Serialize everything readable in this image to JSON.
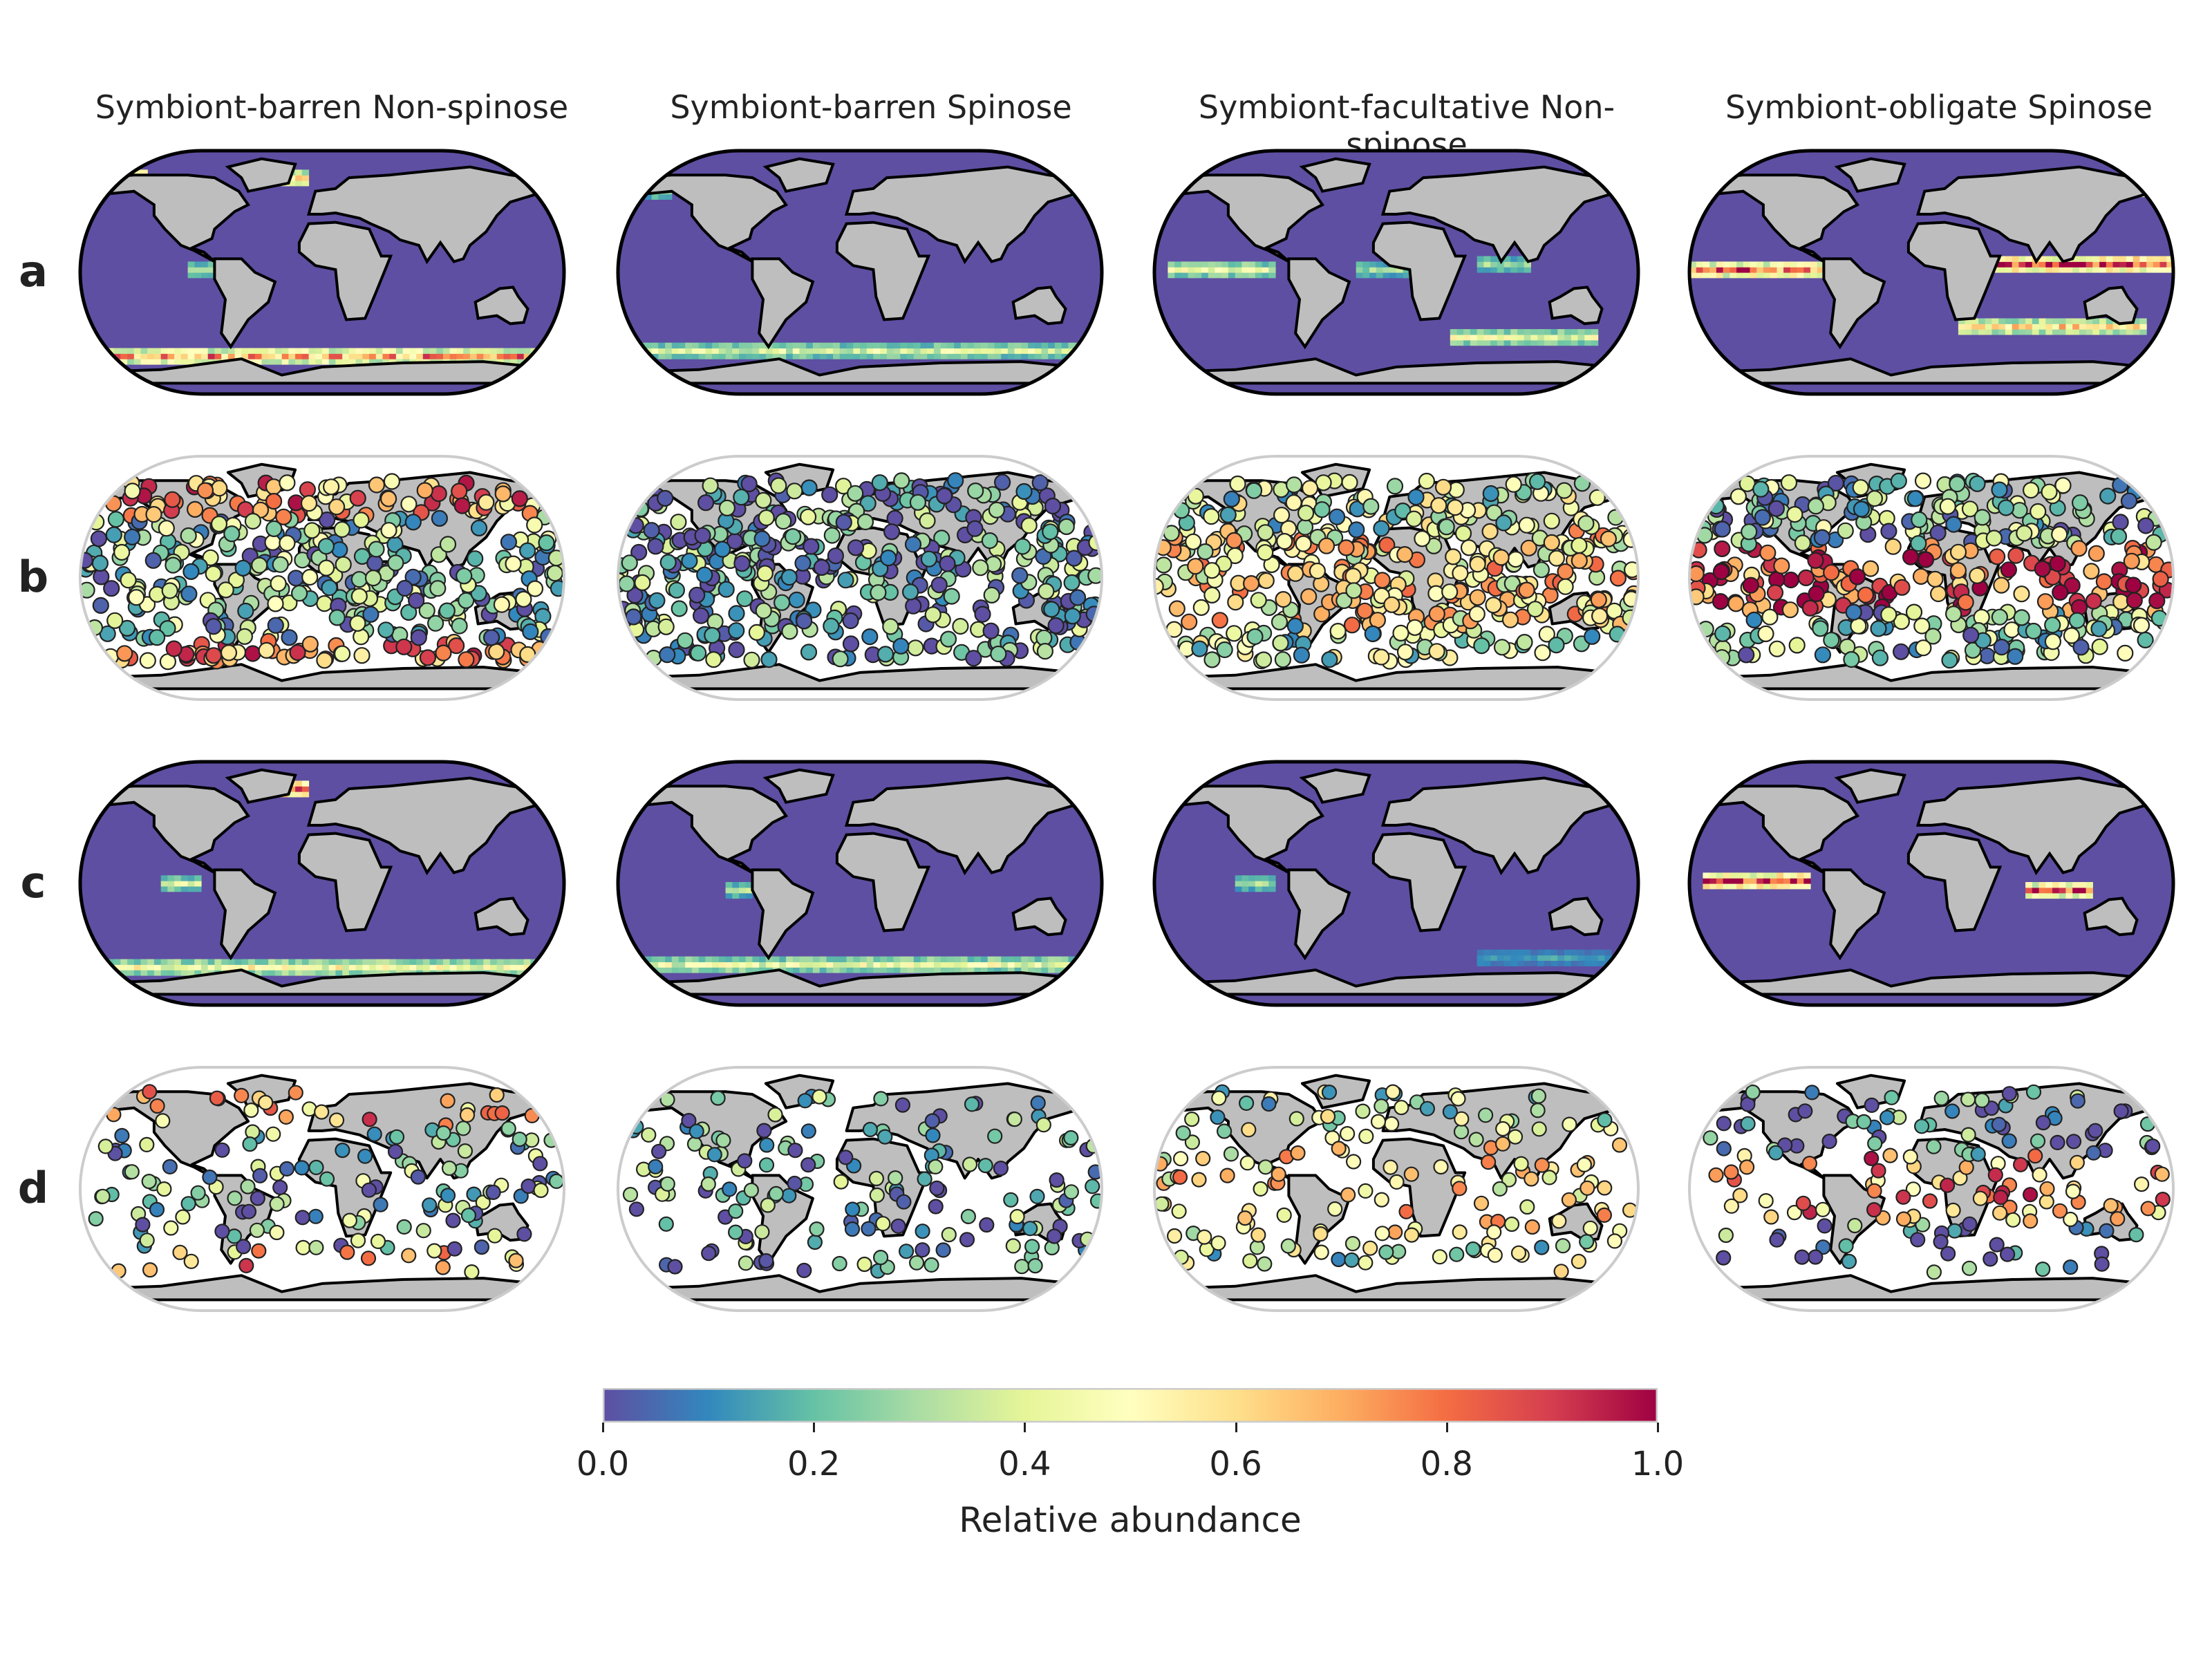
{
  "columns": [
    "Symbiont-barren Non-spinose",
    "Symbiont-barren Spinose",
    "Symbiont-facultative Non-spinose",
    "Symbiont-obligate Spinose"
  ],
  "rows": [
    "a",
    "b",
    "c",
    "d"
  ],
  "colorbar": {
    "label": "Relative abundance",
    "ticks": [
      "0.0",
      "0.2",
      "0.4",
      "0.6",
      "0.8",
      "1.0"
    ],
    "range": [
      0,
      1
    ],
    "colormap": "Spectral_r",
    "stops": [
      "#5e4fa2",
      "#3288bd",
      "#66c2a5",
      "#abdda4",
      "#e6f598",
      "#ffffbf",
      "#fee08b",
      "#fdae61",
      "#f46d43",
      "#d53e4f",
      "#9e0142"
    ]
  },
  "colors": {
    "ocean_zero": "#5e4fa2",
    "land": "#bebebe",
    "coastline": "#000000",
    "frame": "#cccccc"
  },
  "chart_data": {
    "type": "heatmap",
    "projection": "Eckert IV",
    "value_range": [
      0,
      1
    ],
    "rows": [
      {
        "label": "a",
        "kind": "gridded-model",
        "bands": [
          [
            {
              "lat": -62,
              "lon": [
                -180,
                180
              ],
              "v": 0.75
            },
            {
              "lat": 70,
              "lon": [
                -170,
                -130
              ],
              "v": 0.85
            },
            {
              "lat": 70,
              "lon": [
                -40,
                -10
              ],
              "v": 0.7
            },
            {
              "lat": 72,
              "lon": [
                140,
                180
              ],
              "v": 0.6
            },
            {
              "lat": 2,
              "lon": [
                -100,
                -80
              ],
              "v": 0.35
            }
          ],
          [
            {
              "lat": -58,
              "lon": [
                -180,
                180
              ],
              "v": 0.4
            },
            {
              "lat": 60,
              "lon": [
                -160,
                -140
              ],
              "v": 0.3
            },
            {
              "lat": 62,
              "lon": [
                150,
                180
              ],
              "v": 0.35
            }
          ],
          [
            {
              "lat": 2,
              "lon": [
                -170,
                -90
              ],
              "v": 0.45
            },
            {
              "lat": -48,
              "lon": [
                40,
                150
              ],
              "v": 0.45
            },
            {
              "lat": 2,
              "lon": [
                -30,
                10
              ],
              "v": 0.3
            },
            {
              "lat": 6,
              "lon": [
                60,
                100
              ],
              "v": 0.3
            }
          ],
          [
            {
              "lat": 2,
              "lon": [
                -180,
                -80
              ],
              "v": 0.85
            },
            {
              "lat": 6,
              "lon": [
                40,
                180
              ],
              "v": 0.95
            },
            {
              "lat": -40,
              "lon": [
                20,
                160
              ],
              "v": 0.6
            },
            {
              "lat": 62,
              "lon": [
                140,
                180
              ],
              "v": 0.8
            }
          ]
        ]
      },
      {
        "label": "b",
        "kind": "core-top-observations",
        "mean_by_column": [
          0.35,
          0.15,
          0.45,
          0.55
        ]
      },
      {
        "label": "c",
        "kind": "gridded-model",
        "bands": [
          [
            {
              "lat": -62,
              "lon": [
                -180,
                180
              ],
              "v": 0.5
            },
            {
              "lat": 70,
              "lon": [
                -40,
                -10
              ],
              "v": 0.95
            },
            {
              "lat": 0,
              "lon": [
                -120,
                -90
              ],
              "v": 0.4
            }
          ],
          [
            {
              "lat": -60,
              "lon": [
                -180,
                180
              ],
              "v": 0.45
            },
            {
              "lat": -5,
              "lon": [
                -100,
                -80
              ],
              "v": 0.3
            }
          ],
          [
            {
              "lat": 0,
              "lon": [
                -120,
                -90
              ],
              "v": 0.3
            },
            {
              "lat": -55,
              "lon": [
                60,
                160
              ],
              "v": 0.15
            }
          ],
          [
            {
              "lat": 2,
              "lon": [
                -170,
                -90
              ],
              "v": 0.95
            },
            {
              "lat": -5,
              "lon": [
                70,
                120
              ],
              "v": 0.85
            }
          ]
        ]
      },
      {
        "label": "d",
        "kind": "plankton-tow-observations",
        "mean_by_column": [
          0.3,
          0.15,
          0.45,
          0.4
        ]
      }
    ]
  }
}
